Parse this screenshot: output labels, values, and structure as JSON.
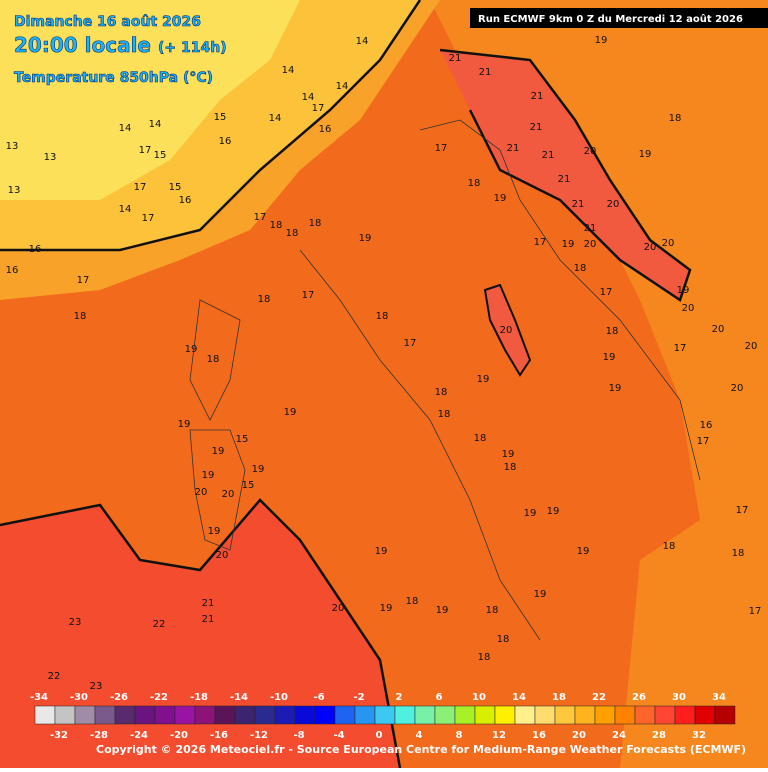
{
  "header": {
    "date": "Dimanche 16 août 2026",
    "time": "20:00 locale",
    "lead": "(+ 114h)",
    "field": "Temperature 850hPa (°C)",
    "run": "Run ECMWF 9km 0 Z du Mercredi 12 août 2026"
  },
  "legend": {
    "colors": [
      "#e8e8e8",
      "#c4c4c4",
      "#a08ca8",
      "#7a5a8c",
      "#5a2a6e",
      "#6a1480",
      "#80108e",
      "#9a14a4",
      "#8c1478",
      "#5a1458",
      "#3c2470",
      "#2a2a90",
      "#1c1cb4",
      "#0a0ad8",
      "#0000ff",
      "#1e64f0",
      "#2896f0",
      "#3cc8f0",
      "#50f0e0",
      "#78f0a8",
      "#8cf078",
      "#a8f028",
      "#d8f000",
      "#fff000",
      "#fff08c",
      "#ffdc6e",
      "#ffc83c",
      "#ffb41e",
      "#ffa000",
      "#ff8200",
      "#ff6428",
      "#ff4632",
      "#ff1e1e",
      "#e00000",
      "#b40000"
    ],
    "ticks_upper": [
      -34,
      -30,
      -26,
      -22,
      -18,
      -14,
      -10,
      -6,
      -2,
      2,
      6,
      10,
      14,
      18,
      22,
      26,
      30,
      34
    ],
    "ticks_lower": [
      -32,
      -28,
      -24,
      -20,
      -16,
      -12,
      -8,
      -4,
      0,
      4,
      8,
      12,
      16,
      20,
      24,
      28,
      32
    ]
  },
  "map_labels": [
    14,
    14,
    13,
    13,
    13,
    14,
    15,
    16,
    17,
    15,
    17,
    15,
    16,
    17,
    14,
    14,
    14,
    14,
    17,
    16,
    14,
    16,
    16,
    17,
    18,
    17,
    18,
    18,
    18,
    19,
    18,
    17,
    18,
    17,
    19,
    18,
    19,
    19,
    15,
    19,
    19,
    20,
    20,
    15,
    19,
    20,
    19,
    21,
    21,
    21,
    21,
    21,
    21,
    17,
    18,
    19,
    21,
    21,
    21,
    20,
    20,
    19,
    18,
    19,
    17,
    19,
    20,
    20,
    20,
    18,
    17,
    20,
    19,
    18,
    18,
    19,
    19,
    18,
    19,
    18,
    19,
    19,
    19,
    18,
    19,
    21,
    21,
    22,
    23,
    20,
    19,
    18,
    19,
    18,
    19,
    18,
    18,
    22,
    23,
    20,
    20,
    20,
    17,
    16,
    17,
    17,
    18,
    17,
    20,
    18,
    19
  ],
  "footer": {
    "copyright": "Copyright © 2026 Meteociel.fr - Source European Centre for Medium-Range Weather Forecasts (ECMWF)"
  }
}
